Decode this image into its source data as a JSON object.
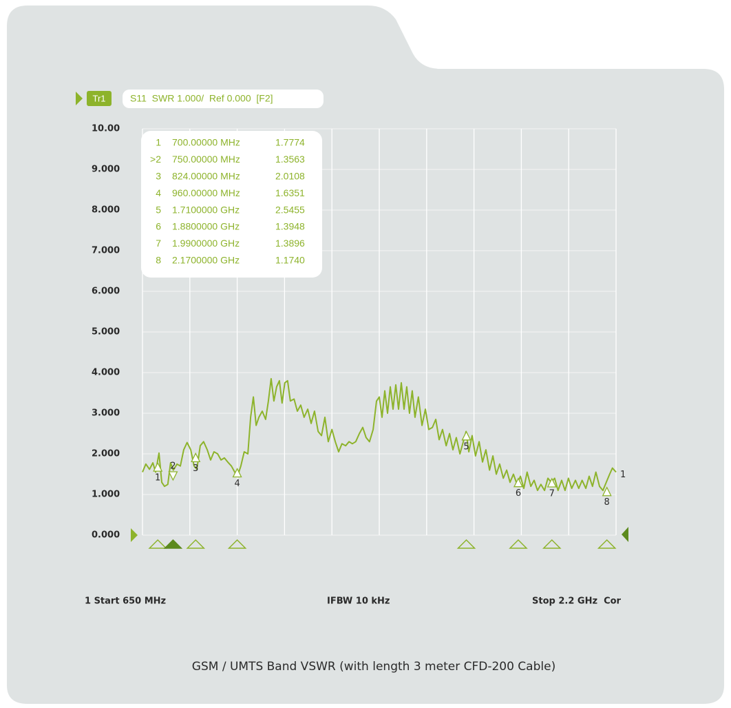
{
  "chart_data": {
    "type": "line",
    "trace_tag": "Tr1",
    "header": "S11  SWR 1.000/  Ref 0.000  [F2]",
    "xlim": [
      650,
      2200
    ],
    "xticks": [
      650,
      805,
      960,
      1115,
      1270,
      1425,
      1580,
      1735,
      1890,
      2045,
      2200
    ],
    "ylim": [
      0,
      10
    ],
    "yticks": [
      {
        "value": 0,
        "label": "0.000"
      },
      {
        "value": 1,
        "label": "1.000"
      },
      {
        "value": 2,
        "label": "2.000"
      },
      {
        "value": 3,
        "label": "3.000"
      },
      {
        "value": 4,
        "label": "4.000"
      },
      {
        "value": 5,
        "label": "5.000"
      },
      {
        "value": 6,
        "label": "6.000"
      },
      {
        "value": 7,
        "label": "7.000"
      },
      {
        "value": 8,
        "label": "8.000"
      },
      {
        "value": 9,
        "label": "9.000"
      },
      {
        "value": 10,
        "label": "10.00"
      }
    ],
    "grid": true,
    "series": [
      {
        "name": "1",
        "color": "#8db32b",
        "x": [
          650,
          661,
          673,
          684,
          693,
          704,
          713,
          722,
          733,
          742,
          751,
          763,
          774,
          785,
          796,
          808,
          819,
          828,
          839,
          850,
          862,
          873,
          884,
          896,
          907,
          918,
          929,
          941,
          952,
          961,
          972,
          983,
          995,
          1004,
          1013,
          1022,
          1031,
          1042,
          1053,
          1062,
          1071,
          1080,
          1089,
          1098,
          1107,
          1116,
          1125,
          1134,
          1146,
          1157,
          1168,
          1179,
          1191,
          1202,
          1213,
          1225,
          1236,
          1247,
          1258,
          1270,
          1281,
          1292,
          1303,
          1315,
          1326,
          1337,
          1348,
          1360,
          1371,
          1382,
          1393,
          1405,
          1416,
          1425,
          1434,
          1443,
          1452,
          1461,
          1470,
          1479,
          1488,
          1497,
          1506,
          1515,
          1524,
          1533,
          1542,
          1553,
          1565,
          1576,
          1587,
          1599,
          1610,
          1621,
          1632,
          1644,
          1655,
          1666,
          1677,
          1689,
          1700,
          1709,
          1718,
          1729,
          1740,
          1752,
          1763,
          1774,
          1786,
          1797,
          1808,
          1819,
          1831,
          1842,
          1853,
          1864,
          1876,
          1887,
          1898,
          1909,
          1921,
          1932,
          1943,
          1954,
          1966,
          1977,
          1988,
          1999,
          2010,
          2022,
          2033,
          2044,
          2055,
          2067,
          2078,
          2089,
          2101,
          2112,
          2123,
          2134,
          2146,
          2157,
          2168,
          2179,
          2188,
          2200
        ],
        "values": [
          1.55,
          1.75,
          1.62,
          1.78,
          1.55,
          2.02,
          1.3,
          1.2,
          1.25,
          1.78,
          1.6,
          1.75,
          1.7,
          2.1,
          2.28,
          2.1,
          1.7,
          1.62,
          2.2,
          2.3,
          2.1,
          1.85,
          2.05,
          2.0,
          1.85,
          1.9,
          1.8,
          1.7,
          1.55,
          1.45,
          1.7,
          2.05,
          2.0,
          2.9,
          3.4,
          2.7,
          2.9,
          3.05,
          2.85,
          3.3,
          3.85,
          3.3,
          3.65,
          3.8,
          3.25,
          3.75,
          3.8,
          3.3,
          3.35,
          3.05,
          3.2,
          2.9,
          3.1,
          2.75,
          3.05,
          2.55,
          2.45,
          2.9,
          2.3,
          2.6,
          2.3,
          2.05,
          2.25,
          2.2,
          2.3,
          2.25,
          2.3,
          2.5,
          2.65,
          2.4,
          2.3,
          2.6,
          3.3,
          3.4,
          2.9,
          3.55,
          3.0,
          3.65,
          3.1,
          3.7,
          3.1,
          3.75,
          3.1,
          3.65,
          3.0,
          3.55,
          2.9,
          3.4,
          2.7,
          3.1,
          2.6,
          2.65,
          2.85,
          2.35,
          2.6,
          2.2,
          2.5,
          2.1,
          2.4,
          2.0,
          2.3,
          2.55,
          2.05,
          2.45,
          1.95,
          2.3,
          1.8,
          2.1,
          1.6,
          1.95,
          1.5,
          1.75,
          1.4,
          1.6,
          1.3,
          1.5,
          1.25,
          1.45,
          1.15,
          1.55,
          1.2,
          1.35,
          1.1,
          1.25,
          1.1,
          1.4,
          1.3,
          1.4,
          1.1,
          1.35,
          1.1,
          1.4,
          1.15,
          1.35,
          1.15,
          1.35,
          1.15,
          1.45,
          1.2,
          1.55,
          1.2,
          1.1,
          1.3,
          1.5,
          1.65,
          1.55
        ]
      }
    ],
    "markers": {
      "labels": [
        "1",
        "2",
        "3",
        "4",
        "5",
        "6",
        "7",
        "8"
      ],
      "table_ids": [
        "1",
        ">2",
        "3",
        "4",
        "5",
        "6",
        "7",
        "8"
      ],
      "x": [
        700,
        750,
        824,
        960,
        1710,
        1880,
        1990,
        2170
      ],
      "x_labels": [
        "700.00000 MHz",
        "750.00000 MHz",
        "824.00000 MHz",
        "960.00000 MHz",
        "1.7100000 GHz",
        "1.8800000 GHz",
        "1.9900000 GHz",
        "2.1700000 GHz"
      ],
      "values": [
        1.7774,
        1.3563,
        2.0108,
        1.6351,
        2.5455,
        1.3948,
        1.3896,
        1.174
      ],
      "value_labels": [
        "1.7774",
        "1.3563",
        "2.0108",
        "1.6351",
        "2.5455",
        "1.3948",
        "1.3896",
        "1.1740"
      ]
    },
    "footer": {
      "start": "1 Start 650 MHz",
      "ifbw": "IFBW 10 kHz",
      "stop": "Stop 2.2 GHz  Cor"
    },
    "caption": "GSM / UMTS Band VSWR (with length 3 meter CFD-200 Cable)"
  }
}
